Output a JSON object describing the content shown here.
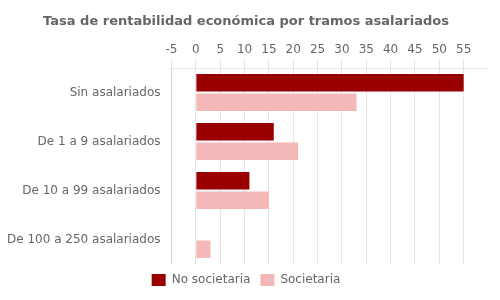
{
  "chart_data": {
    "type": "bar",
    "orientation": "horizontal",
    "title": "Tasa de rentabilidad económica por tramos asalariados",
    "categories": [
      "Sin asalariados",
      "De 1 a 9 asalariados",
      "De 10 a 99 asalariados",
      "De 100 a 250 asalariados"
    ],
    "series": [
      {
        "name": "No societaria",
        "color": "#990000",
        "values": [
          55,
          16,
          11,
          0
        ]
      },
      {
        "name": "Societaria",
        "color": "#f4b8b8",
        "values": [
          33,
          21,
          15,
          3
        ]
      }
    ],
    "xlim": [
      -5,
      60
    ],
    "xticks": [
      -5,
      0,
      5,
      10,
      15,
      20,
      25,
      30,
      35,
      40,
      45,
      50,
      55
    ],
    "grid": true,
    "legend": "bottom"
  }
}
